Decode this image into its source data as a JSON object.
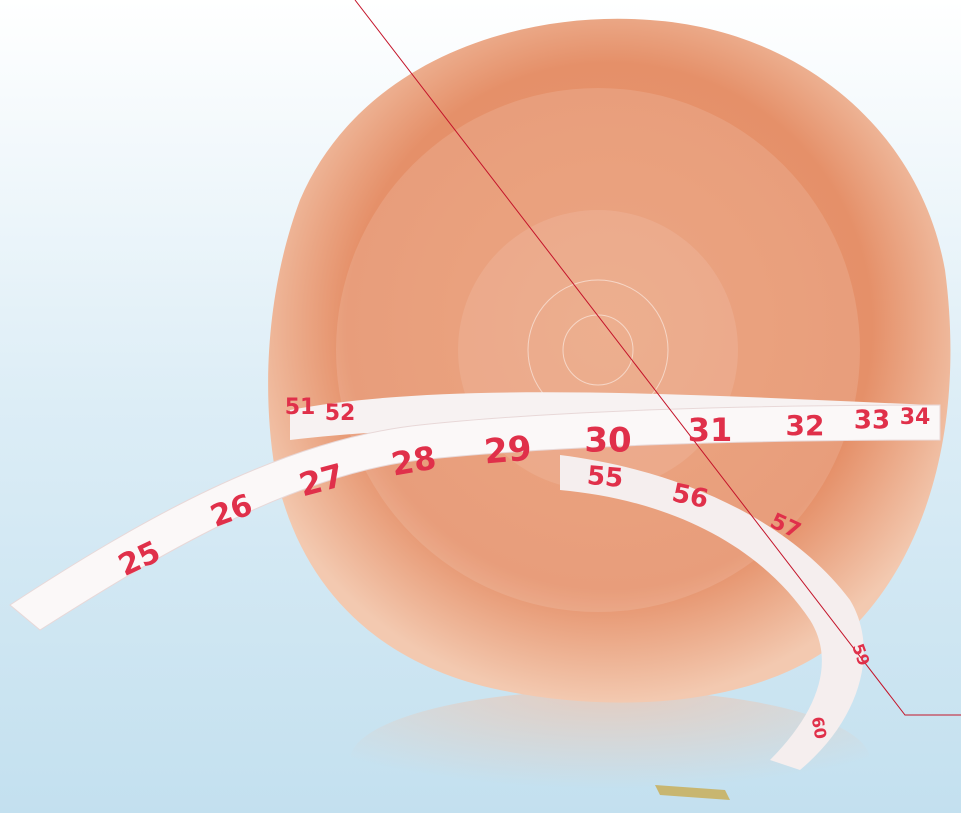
{
  "tape": {
    "front_labels": [
      "25",
      "26",
      "27",
      "28",
      "29",
      "30",
      "31",
      "32",
      "33",
      "34"
    ],
    "back_labels": [
      "51",
      "52",
      "55",
      "56",
      "57",
      "59",
      "60"
    ]
  }
}
